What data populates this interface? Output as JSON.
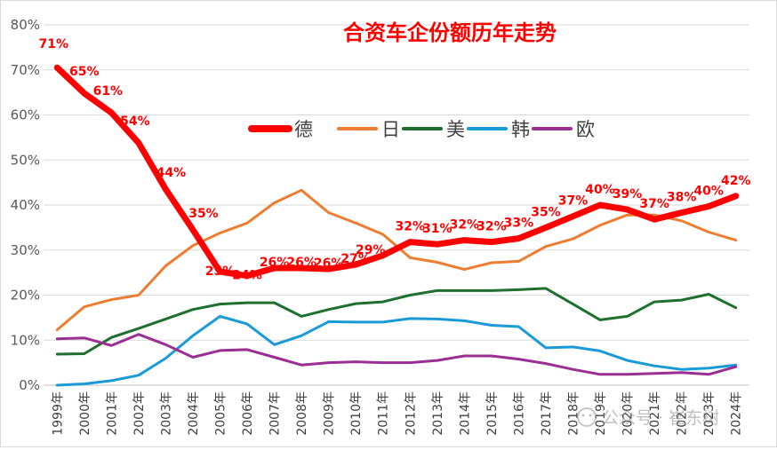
{
  "chart_data": {
    "type": "line",
    "title": "合资车企份额历年走势",
    "xlabel": "",
    "ylabel": "",
    "ylim": [
      0,
      80
    ],
    "yticks": [
      "0%",
      "10%",
      "20%",
      "30%",
      "40%",
      "50%",
      "60%",
      "70%",
      "80%"
    ],
    "grid": true,
    "legend_position": "top-center",
    "categories": [
      "1999年",
      "2000年",
      "2001年",
      "2002年",
      "2003年",
      "2004年",
      "2005年",
      "2006年",
      "2007年",
      "2008年",
      "2009年",
      "2010年",
      "2011年",
      "2012年",
      "2013年",
      "2014年",
      "2015年",
      "2016年",
      "2017年",
      "2018年",
      "2019年",
      "2020年",
      "2021年",
      "2022年",
      "2023年",
      "2024年"
    ],
    "series": [
      {
        "name": "德",
        "color": "#ff0000",
        "values": [
          70.5,
          64.8,
          60.5,
          53.8,
          43.5,
          34.5,
          25.2,
          24.3,
          26.0,
          26.0,
          25.8,
          26.8,
          28.8,
          31.8,
          31.3,
          32.2,
          31.8,
          32.6,
          35.0,
          37.5,
          40.0,
          39.0,
          36.8,
          38.3,
          39.7,
          42.0
        ]
      },
      {
        "name": "日",
        "color": "#ed7d31",
        "values": [
          12.3,
          17.4,
          19.0,
          20.0,
          26.5,
          31.0,
          33.8,
          36.0,
          40.5,
          43.3,
          38.3,
          36.0,
          33.5,
          28.3,
          27.3,
          25.7,
          27.2,
          27.5,
          30.8,
          32.5,
          35.5,
          37.8,
          37.8,
          36.5,
          34.0,
          32.2
        ]
      },
      {
        "name": "美",
        "color": "#1f6f2e",
        "values": [
          6.9,
          7.0,
          10.6,
          12.6,
          14.7,
          16.8,
          18.0,
          18.3,
          18.3,
          15.3,
          16.8,
          18.1,
          18.5,
          20.0,
          21.0,
          21.0,
          21.0,
          21.2,
          21.5,
          18.0,
          14.5,
          15.3,
          18.5,
          18.9,
          20.2,
          17.2
        ]
      },
      {
        "name": "韩",
        "color": "#1a9ad6",
        "values": [
          0,
          0.3,
          1.0,
          2.2,
          6.0,
          11.0,
          15.3,
          13.6,
          9.0,
          11.0,
          14.1,
          14.0,
          14.0,
          14.8,
          14.7,
          14.3,
          13.3,
          13.0,
          8.3,
          8.5,
          7.6,
          5.5,
          4.3,
          3.5,
          3.8,
          4.5
        ]
      },
      {
        "name": "欧",
        "color": "#9b2e93",
        "values": [
          10.3,
          10.5,
          8.8,
          11.3,
          9.0,
          6.2,
          7.7,
          7.9,
          6.2,
          4.5,
          5.0,
          5.2,
          5.0,
          5.0,
          5.5,
          6.5,
          6.5,
          5.8,
          4.8,
          3.5,
          2.4,
          2.4,
          2.6,
          2.8,
          2.4,
          4.1
        ]
      }
    ],
    "data_labels": [
      "71%",
      "65%",
      "61%",
      "54%",
      "44%",
      "35%",
      "25%",
      "24%",
      "26%",
      "26%",
      "26%",
      "27%",
      "29%",
      "32%",
      "31%",
      "32%",
      "32%",
      "33%",
      "35%",
      "37%",
      "40%",
      "39%",
      "37%",
      "38%",
      "40%",
      "42%"
    ]
  },
  "watermark": "公众号 · 崔东树"
}
